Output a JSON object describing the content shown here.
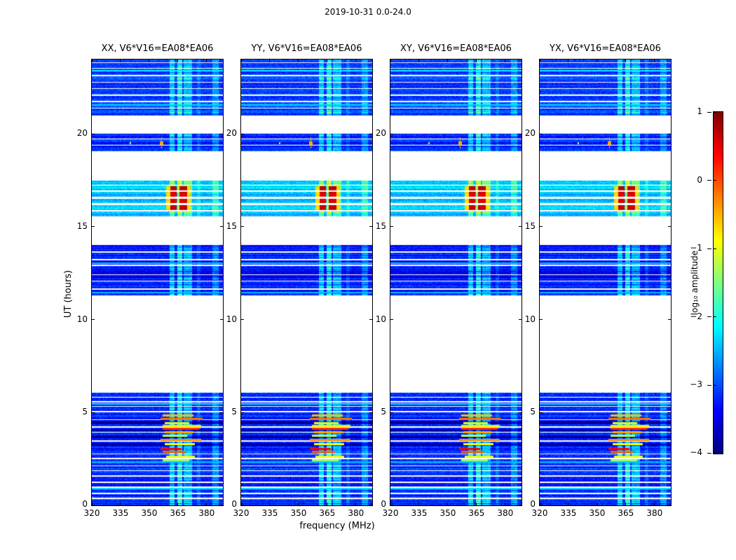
{
  "figure": {
    "title": "2019-10-31 0.0-24.0",
    "xlabel": "frequency (MHz)",
    "ylabel": "UT (hours)"
  },
  "chart_data": {
    "type": "heatmap",
    "title": "2019-10-31 0.0-24.0",
    "xlabel": "frequency (MHz)",
    "ylabel": "UT (hours)",
    "xlim": [
      320,
      388.5
    ],
    "ylim": [
      0,
      24
    ],
    "x_ticks": [
      320,
      335,
      350,
      365,
      380
    ],
    "y_ticks": [
      0,
      5,
      10,
      15,
      20
    ],
    "colormap": "jet",
    "colorbar": {
      "label": "log₁₀ amplitude",
      "ticks": [
        1,
        0,
        -1,
        -2,
        -3,
        -4
      ],
      "vmin": -4,
      "vmax": 1
    },
    "panels": [
      {
        "title": "XX, V6*V16=EA08*EA06"
      },
      {
        "title": "YY, V6*V16=EA08*EA06"
      },
      {
        "title": "XY, V6*V16=EA08*EA06"
      },
      {
        "title": "YX, V6*V16=EA08*EA06"
      }
    ],
    "time_segments": [
      {
        "t0": 0.0,
        "t1": 6.05,
        "base": -3.25
      },
      {
        "t0": 11.3,
        "t1": 14.0,
        "base": -3.3
      },
      {
        "t0": 15.55,
        "t1": 17.5,
        "base": -2.45
      },
      {
        "t0": 19.05,
        "t1": 20.0,
        "base": -3.25
      },
      {
        "t0": 21.0,
        "t1": 24.0,
        "base": -3.15
      }
    ],
    "rfi_bands": [
      {
        "f0": 360.6,
        "f1": 363.2,
        "boost": 0.8
      },
      {
        "f0": 364.8,
        "f1": 367.3,
        "boost": 1.05
      },
      {
        "f0": 367.9,
        "f1": 372.4,
        "boost": 0.7
      },
      {
        "f0": 374.9,
        "f1": 376.9,
        "boost": 0.3
      },
      {
        "f0": 383.0,
        "f1": 386.2,
        "boost": 0.5
      }
    ],
    "white_lines": [
      [
        0.35,
        0.4
      ],
      [
        0.62,
        0.67
      ],
      [
        0.95,
        1.01
      ],
      [
        1.22,
        1.27
      ],
      [
        1.55,
        1.62
      ],
      [
        1.85,
        1.9
      ],
      [
        2.1,
        2.16
      ],
      [
        2.5,
        2.56
      ],
      [
        2.75,
        2.8
      ],
      [
        3.44,
        3.5
      ],
      [
        3.9,
        3.96
      ],
      [
        4.2,
        4.26
      ],
      [
        4.6,
        4.65
      ],
      [
        5.0,
        5.08
      ],
      [
        5.3,
        5.36
      ],
      [
        5.55,
        5.6
      ],
      [
        5.8,
        5.85
      ],
      [
        11.62,
        11.68
      ],
      [
        12.05,
        12.11
      ],
      [
        12.38,
        12.45
      ],
      [
        12.9,
        12.96
      ],
      [
        13.2,
        13.27
      ],
      [
        13.6,
        13.66
      ],
      [
        15.82,
        15.9
      ],
      [
        16.18,
        16.26
      ],
      [
        16.52,
        16.6
      ],
      [
        16.88,
        16.95
      ],
      [
        17.2,
        17.26
      ],
      [
        19.35,
        19.4
      ],
      [
        19.7,
        19.76
      ],
      [
        21.35,
        21.41
      ],
      [
        21.7,
        21.76
      ],
      [
        22.05,
        22.12
      ],
      [
        22.4,
        22.46
      ],
      [
        22.75,
        22.81
      ],
      [
        23.1,
        23.17
      ],
      [
        23.5,
        23.56
      ],
      [
        23.8,
        23.85
      ]
    ],
    "dark_rows": [
      [
        3.2,
        3.36
      ],
      [
        3.6,
        3.74
      ],
      [
        3.98,
        4.12
      ],
      [
        4.38,
        4.52
      ]
    ],
    "bright_rows": [
      [
        0.92,
        -2.3
      ],
      [
        2.32,
        -2.4
      ],
      [
        5.48,
        -2.2
      ],
      [
        11.45,
        -2.5
      ],
      [
        13.02,
        -2.4
      ],
      [
        21.56,
        -2.3
      ],
      [
        23.38,
        -2.2
      ]
    ],
    "hot_rows": [
      [
        4.86,
        357,
        373,
        -0.55
      ],
      [
        4.67,
        356,
        378,
        -0.2
      ],
      [
        4.45,
        358,
        371,
        -1.1
      ],
      [
        4.3,
        357,
        377,
        -0.75
      ],
      [
        4.14,
        357,
        376,
        0.15
      ],
      [
        3.96,
        358,
        373,
        -0.45
      ],
      [
        3.75,
        357,
        370,
        -1.2
      ],
      [
        3.54,
        356,
        377,
        -0.3
      ],
      [
        3.32,
        358,
        374,
        -0.9
      ],
      [
        3.05,
        356,
        367,
        0.4
      ],
      [
        2.9,
        357,
        369,
        -0.1
      ],
      [
        2.64,
        359,
        374,
        -1.0
      ],
      [
        2.45,
        357,
        371,
        -1.4
      ]
    ],
    "hot_block": {
      "t0": 15.88,
      "t1": 17.18,
      "amp": 0.55,
      "columns": [
        [
          361.2,
          364.3
        ],
        [
          365.7,
          369.7
        ]
      ],
      "edge_columns": [
        [
          359.0,
          361.2
        ],
        [
          369.7,
          371.6
        ]
      ],
      "edge_amp": -0.7
    },
    "spots": [
      {
        "t": 19.52,
        "f": 356.3,
        "width_mhz": 1.8,
        "height_hr": 0.18,
        "amp": -0.45,
        "cross": true
      },
      {
        "t": 19.5,
        "f": 340.2,
        "width_mhz": 0.9,
        "height_hr": 0.1,
        "amp": -1.3,
        "cross": false
      }
    ]
  }
}
